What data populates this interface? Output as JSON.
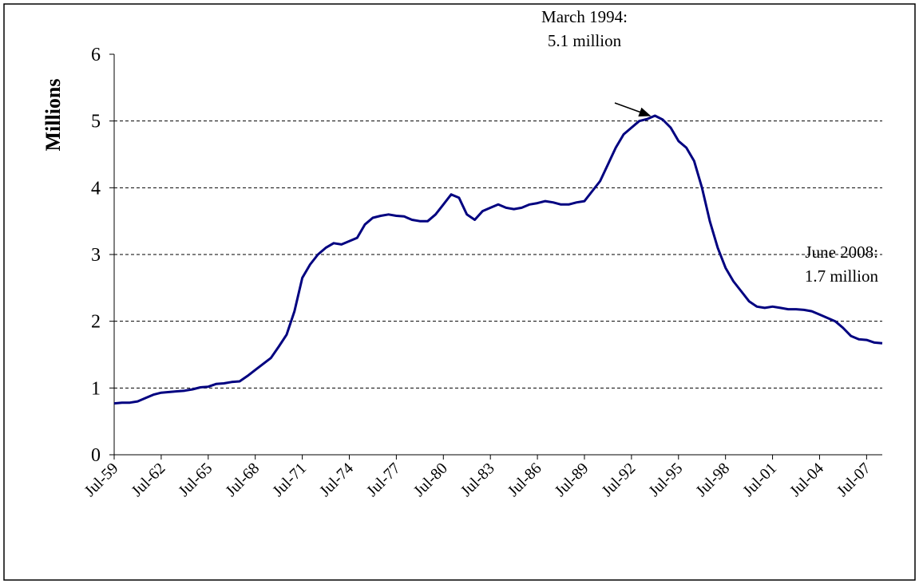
{
  "chart_data": {
    "type": "line",
    "y_label": "Millions",
    "categories": [
      "Jul-59",
      null,
      null,
      null,
      null,
      null,
      "Jul-62",
      null,
      null,
      null,
      null,
      null,
      "Jul-65",
      null,
      null,
      null,
      null,
      null,
      "Jul-68",
      null,
      null,
      null,
      null,
      null,
      "Jul-71",
      null,
      null,
      null,
      null,
      null,
      "Jul-74",
      null,
      null,
      null,
      null,
      null,
      "Jul-77",
      null,
      null,
      null,
      null,
      null,
      "Jul-80",
      null,
      null,
      null,
      null,
      null,
      "Jul-83",
      null,
      null,
      null,
      null,
      null,
      "Jul-86",
      null,
      null,
      null,
      null,
      null,
      "Jul-89",
      null,
      null,
      null,
      null,
      null,
      "Jul-92",
      null,
      null,
      null,
      null,
      null,
      "Jul-95",
      null,
      null,
      null,
      null,
      null,
      "Jul-98",
      null,
      null,
      null,
      null,
      null,
      "Jul-01",
      null,
      null,
      null,
      null,
      null,
      "Jul-04",
      null,
      null,
      null,
      null,
      null,
      "Jul-07",
      null,
      null
    ],
    "values": [
      0.77,
      0.78,
      0.78,
      0.8,
      0.85,
      0.9,
      0.93,
      0.94,
      0.95,
      0.96,
      0.98,
      1.01,
      1.02,
      1.06,
      1.07,
      1.09,
      1.1,
      1.18,
      1.27,
      1.36,
      1.45,
      1.62,
      1.8,
      2.15,
      2.65,
      2.85,
      3.0,
      3.1,
      3.17,
      3.15,
      3.2,
      3.25,
      3.45,
      3.55,
      3.58,
      3.6,
      3.58,
      3.57,
      3.52,
      3.5,
      3.5,
      3.6,
      3.75,
      3.9,
      3.85,
      3.6,
      3.52,
      3.65,
      3.7,
      3.75,
      3.7,
      3.68,
      3.7,
      3.75,
      3.77,
      3.8,
      3.78,
      3.75,
      3.75,
      3.78,
      3.8,
      3.95,
      4.1,
      4.35,
      4.6,
      4.8,
      4.9,
      5.0,
      5.03,
      5.08,
      5.02,
      4.9,
      4.7,
      4.6,
      4.4,
      4.0,
      3.5,
      3.1,
      2.8,
      2.6,
      2.45,
      2.3,
      2.22,
      2.2,
      2.22,
      2.2,
      2.18,
      2.18,
      2.17,
      2.15,
      2.1,
      2.05,
      2.0,
      1.9,
      1.78,
      1.73,
      1.72,
      1.68,
      1.67
    ],
    "color": "#000080",
    "ylim": [
      0,
      6
    ],
    "yticks": [
      0,
      1,
      2,
      3,
      4,
      5,
      6
    ],
    "grid": true,
    "annotations": [
      {
        "lines": [
          "March 1994:",
          "5.1 million"
        ]
      },
      {
        "lines": [
          "June 2008:",
          "1.7 million"
        ]
      }
    ]
  }
}
